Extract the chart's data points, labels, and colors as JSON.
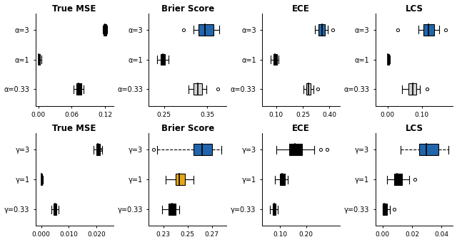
{
  "top_row": {
    "titles": [
      "True MSE",
      "Brier Score",
      "ECE",
      "LCS"
    ],
    "ylabels": [
      "α=3",
      "α=1",
      "α=0.33"
    ],
    "plots": {
      "True MSE": {
        "xlim": [
          -0.005,
          0.135
        ],
        "xticks": [
          0.0,
          0.06,
          0.12
        ],
        "xtick_labels": [
          "0.00",
          "0.06",
          "0.12"
        ],
        "boxes": [
          {
            "y": 3,
            "q1": 0.118,
            "q2": 0.12,
            "q3": 0.122,
            "whislo": 0.116,
            "whishi": 0.124,
            "fliers": [],
            "color": "black"
          },
          {
            "y": 2,
            "q1": 0.0,
            "q2": 0.001,
            "q3": 0.003,
            "whislo": 0.0,
            "whishi": 0.005,
            "fliers": [],
            "color": "black"
          },
          {
            "y": 1,
            "q1": 0.069,
            "q2": 0.073,
            "q3": 0.077,
            "whislo": 0.063,
            "whishi": 0.081,
            "fliers": [],
            "color": "black"
          }
        ]
      },
      "Brier Score": {
        "xlim": [
          0.215,
          0.395
        ],
        "xticks": [
          0.25,
          0.35
        ],
        "xtick_labels": [
          "0.25",
          "0.35"
        ],
        "boxes": [
          {
            "y": 3,
            "q1": 0.33,
            "q2": 0.345,
            "q3": 0.365,
            "whislo": 0.318,
            "whishi": 0.378,
            "fliers": [
              0.295
            ],
            "color": "#2166ac",
            "dashed": false
          },
          {
            "y": 2,
            "q1": 0.243,
            "q2": 0.248,
            "q3": 0.252,
            "whislo": 0.235,
            "whishi": 0.26,
            "fliers": [],
            "color": "black"
          },
          {
            "y": 1,
            "q1": 0.318,
            "q2": 0.328,
            "q3": 0.338,
            "whislo": 0.307,
            "whishi": 0.348,
            "fliers": [
              0.375
            ],
            "color": "lightgray"
          }
        ]
      },
      "ECE": {
        "xlim": [
          0.02,
          0.46
        ],
        "xticks": [
          0.1,
          0.25,
          0.4
        ],
        "xtick_labels": [
          "0.10",
          "0.25",
          "0.40"
        ],
        "boxes": [
          {
            "y": 3,
            "q1": 0.34,
            "q2": 0.36,
            "q3": 0.375,
            "whislo": 0.318,
            "whishi": 0.39,
            "fliers": [
              0.42
            ],
            "color": "#2166ac"
          },
          {
            "y": 2,
            "q1": 0.085,
            "q2": 0.093,
            "q3": 0.103,
            "whislo": 0.07,
            "whishi": 0.115,
            "fliers": [],
            "color": "black"
          },
          {
            "y": 1,
            "q1": 0.272,
            "q2": 0.283,
            "q3": 0.293,
            "whislo": 0.256,
            "whishi": 0.31,
            "fliers": [
              0.335
            ],
            "color": "lightgray"
          }
        ]
      },
      "LCS": {
        "xlim": [
          -0.035,
          0.19
        ],
        "xticks": [
          0.0,
          0.1
        ],
        "xtick_labels": [
          "0.00",
          "0.10"
        ],
        "boxes": [
          {
            "y": 3,
            "q1": 0.105,
            "q2": 0.118,
            "q3": 0.135,
            "whislo": 0.09,
            "whishi": 0.15,
            "fliers": [
              0.03,
              0.168
            ],
            "color": "#2166ac"
          },
          {
            "y": 2,
            "q1": 0.0,
            "q2": 0.002,
            "q3": 0.005,
            "whislo": 0.0,
            "whishi": 0.008,
            "fliers": [],
            "color": "black"
          },
          {
            "y": 1,
            "q1": 0.06,
            "q2": 0.073,
            "q3": 0.083,
            "whislo": 0.043,
            "whishi": 0.095,
            "fliers": [
              0.115
            ],
            "color": "lightgray"
          }
        ]
      }
    }
  },
  "bottom_row": {
    "titles": [
      "True MSE",
      "Brier Score",
      "ECE",
      "LCS"
    ],
    "ylabels": [
      "γ=3",
      "γ=1",
      "γ=0.33"
    ],
    "plots": {
      "True MSE": {
        "xlim": [
          -0.002,
          0.026
        ],
        "xticks": [
          0.0,
          0.01,
          0.02
        ],
        "xtick_labels": [
          "0.000",
          "0.010",
          "0.020"
        ],
        "boxes": [
          {
            "y": 3,
            "q1": 0.0198,
            "q2": 0.0205,
            "q3": 0.0212,
            "whislo": 0.019,
            "whishi": 0.022,
            "fliers": [
              0.0215
            ],
            "color": "black"
          },
          {
            "y": 2,
            "q1": 0.0,
            "q2": 0.0002,
            "q3": 0.0004,
            "whislo": 0.0,
            "whishi": 0.0007,
            "fliers": [],
            "color": "black"
          },
          {
            "y": 1,
            "q1": 0.0045,
            "q2": 0.005,
            "q3": 0.0055,
            "whislo": 0.0037,
            "whishi": 0.0062,
            "fliers": [],
            "color": "black"
          }
        ]
      },
      "Brier Score": {
        "xlim": [
          0.218,
          0.282
        ],
        "xticks": [
          0.23,
          0.25,
          0.27
        ],
        "xtick_labels": [
          "0.23",
          "0.25",
          "0.27"
        ],
        "boxes": [
          {
            "y": 3,
            "q1": 0.255,
            "q2": 0.262,
            "q3": 0.27,
            "whislo": 0.225,
            "whishi": 0.278,
            "fliers": [
              0.222
            ],
            "color": "#2166ac",
            "dashed": true
          },
          {
            "y": 2,
            "q1": 0.24,
            "q2": 0.243,
            "q3": 0.248,
            "whislo": 0.232,
            "whishi": 0.255,
            "fliers": [],
            "color": "#e6a817"
          },
          {
            "y": 1,
            "q1": 0.234,
            "q2": 0.237,
            "q3": 0.24,
            "whislo": 0.229,
            "whishi": 0.243,
            "fliers": [],
            "color": "black"
          }
        ]
      },
      "ECE": {
        "xlim": [
          0.03,
          0.33
        ],
        "xticks": [
          0.1,
          0.2
        ],
        "xtick_labels": [
          "0.10",
          "0.20"
        ],
        "boxes": [
          {
            "y": 3,
            "q1": 0.135,
            "q2": 0.158,
            "q3": 0.185,
            "whislo": 0.085,
            "whishi": 0.23,
            "fliers": [
              0.255,
              0.28
            ],
            "color": "black"
          },
          {
            "y": 2,
            "q1": 0.098,
            "q2": 0.107,
            "q3": 0.117,
            "whislo": 0.08,
            "whishi": 0.13,
            "fliers": [],
            "color": "black"
          },
          {
            "y": 1,
            "q1": 0.072,
            "q2": 0.078,
            "q3": 0.083,
            "whislo": 0.06,
            "whishi": 0.09,
            "fliers": [],
            "color": "black"
          }
        ]
      },
      "LCS": {
        "xlim": [
          -0.005,
          0.048
        ],
        "xticks": [
          0.0,
          0.02,
          0.04
        ],
        "xtick_labels": [
          "0.00",
          "0.02",
          "0.04"
        ],
        "boxes": [
          {
            "y": 3,
            "q1": 0.025,
            "q2": 0.03,
            "q3": 0.038,
            "whislo": 0.012,
            "whishi": 0.045,
            "fliers": [],
            "color": "#2166ac",
            "dashed": true
          },
          {
            "y": 2,
            "q1": 0.008,
            "q2": 0.01,
            "q3": 0.013,
            "whislo": 0.003,
            "whishi": 0.018,
            "fliers": [
              0.022
            ],
            "color": "black"
          },
          {
            "y": 1,
            "q1": 0.0,
            "q2": 0.001,
            "q3": 0.003,
            "whislo": 0.0,
            "whishi": 0.005,
            "fliers": [
              0.008
            ],
            "color": "black"
          }
        ]
      }
    }
  }
}
